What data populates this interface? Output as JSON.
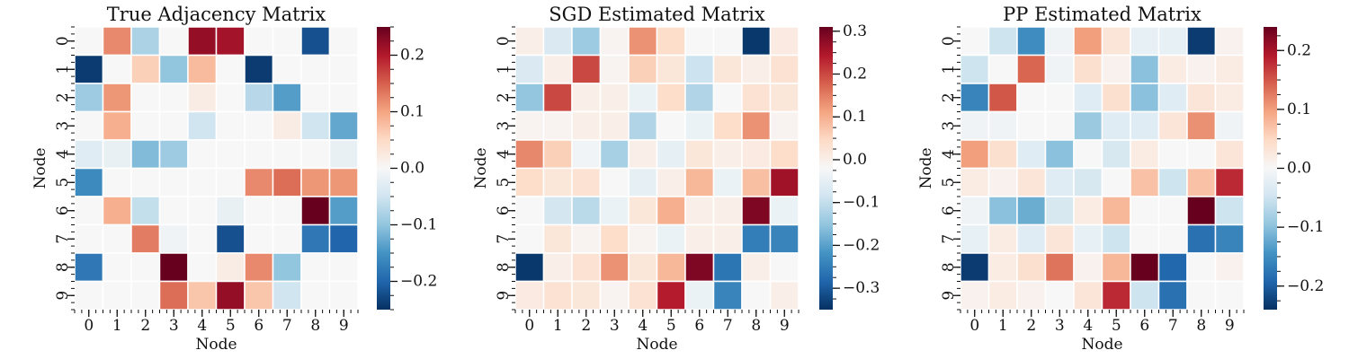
{
  "colors": {
    "colormap": "RdBu_r",
    "stops": [
      "#053061",
      "#2166ac",
      "#4393c3",
      "#92c5de",
      "#d1e5f0",
      "#f7f7f7",
      "#fddbc7",
      "#f4a582",
      "#d6604d",
      "#b2182b",
      "#67001f"
    ],
    "cell_border": "#ffffff"
  },
  "chart_data": [
    {
      "type": "heatmap",
      "title": "True Adjacency Matrix",
      "xlabel": "Node",
      "ylabel": "Node",
      "x_ticks": [
        "0",
        "1",
        "2",
        "3",
        "4",
        "5",
        "6",
        "7",
        "8",
        "9"
      ],
      "y_ticks": [
        "0",
        "1",
        "2",
        "3",
        "4",
        "5",
        "6",
        "7",
        "8",
        "9"
      ],
      "vmin": -0.25,
      "vmax": 0.25,
      "colorbar_ticks": [
        0.2,
        0.1,
        0.0,
        -0.1,
        -0.2
      ],
      "colorbar_labels": [
        "0.2",
        "0.1",
        "0.0",
        "−0.1",
        "−0.2"
      ],
      "values": [
        [
          0.0,
          0.12,
          -0.08,
          0.0,
          0.22,
          0.21,
          0.0,
          0.0,
          -0.22,
          0.0
        ],
        [
          -0.24,
          0.0,
          0.06,
          -0.1,
          0.08,
          0.0,
          -0.24,
          0.0,
          0.0,
          0.0
        ],
        [
          -0.09,
          0.11,
          0.0,
          0.0,
          0.02,
          0.0,
          -0.07,
          -0.14,
          0.0,
          0.0
        ],
        [
          0.0,
          0.09,
          0.0,
          0.0,
          -0.05,
          0.0,
          0.0,
          0.02,
          -0.05,
          -0.13
        ],
        [
          -0.03,
          -0.02,
          -0.11,
          -0.09,
          0.0,
          0.0,
          0.0,
          0.0,
          0.0,
          -0.02
        ],
        [
          -0.16,
          0.0,
          0.0,
          0.0,
          0.0,
          0.0,
          0.12,
          0.14,
          0.11,
          0.11
        ],
        [
          0.0,
          0.09,
          -0.06,
          0.0,
          0.0,
          -0.02,
          0.0,
          0.0,
          0.25,
          -0.14
        ],
        [
          0.0,
          0.0,
          0.13,
          -0.01,
          0.0,
          -0.22,
          0.0,
          0.0,
          -0.18,
          -0.2
        ],
        [
          -0.18,
          0.0,
          0.0,
          0.25,
          0.0,
          0.02,
          0.12,
          -0.1,
          0.0,
          0.0
        ],
        [
          0.0,
          0.0,
          0.0,
          0.14,
          0.07,
          0.22,
          0.07,
          -0.05,
          0.0,
          0.0
        ]
      ]
    },
    {
      "type": "heatmap",
      "title": "SGD Estimated Matrix",
      "xlabel": "Node",
      "ylabel": "Node",
      "x_ticks": [
        "0",
        "1",
        "2",
        "3",
        "4",
        "5",
        "6",
        "7",
        "8",
        "9"
      ],
      "y_ticks": [
        "0",
        "1",
        "2",
        "3",
        "4",
        "5",
        "6",
        "7",
        "8",
        "9"
      ],
      "vmin": -0.35,
      "vmax": 0.31,
      "colorbar_ticks": [
        0.3,
        0.2,
        0.1,
        0.0,
        -0.1,
        -0.2,
        -0.3
      ],
      "colorbar_labels": [
        "0.3",
        "0.2",
        "0.1",
        "0.0",
        "−0.1",
        "−0.2",
        "−0.3"
      ],
      "values": [
        [
          0.0,
          -0.07,
          -0.14,
          -0.01,
          0.13,
          0.04,
          -0.02,
          -0.02,
          -0.34,
          0.01
        ],
        [
          -0.07,
          0.0,
          0.2,
          -0.01,
          0.06,
          0.02,
          -0.09,
          0.02,
          0.0,
          0.03
        ],
        [
          -0.15,
          0.2,
          0.0,
          0.0,
          -0.04,
          0.04,
          -0.12,
          -0.02,
          0.03,
          0.02
        ],
        [
          -0.01,
          -0.01,
          0.0,
          0.0,
          -0.12,
          -0.02,
          -0.04,
          0.04,
          0.13,
          -0.01
        ],
        [
          0.14,
          0.06,
          -0.03,
          -0.13,
          0.0,
          -0.05,
          0.02,
          0.0,
          0.01,
          0.04
        ],
        [
          0.04,
          0.02,
          0.03,
          -0.02,
          -0.05,
          0.0,
          0.09,
          -0.04,
          0.08,
          0.26
        ],
        [
          -0.02,
          -0.08,
          -0.11,
          -0.04,
          0.02,
          0.1,
          0.0,
          0.0,
          0.29,
          -0.04
        ],
        [
          -0.02,
          0.02,
          -0.01,
          0.04,
          -0.01,
          -0.04,
          0.0,
          0.0,
          -0.25,
          -0.24
        ],
        [
          -0.34,
          0.0,
          0.03,
          0.13,
          0.02,
          0.09,
          0.29,
          -0.26,
          0.0,
          -0.02
        ],
        [
          0.01,
          0.03,
          0.02,
          -0.01,
          0.03,
          0.24,
          -0.04,
          -0.24,
          -0.02,
          0.0
        ]
      ]
    },
    {
      "type": "heatmap",
      "title": "PP Estimated Matrix",
      "xlabel": "Node",
      "ylabel": "Node",
      "x_ticks": [
        "0",
        "1",
        "2",
        "3",
        "4",
        "5",
        "6",
        "7",
        "8",
        "9"
      ],
      "y_ticks": [
        "0",
        "1",
        "2",
        "3",
        "4",
        "5",
        "6",
        "7",
        "8",
        "9"
      ],
      "vmin": -0.24,
      "vmax": 0.24,
      "colorbar_ticks": [
        0.2,
        0.1,
        0.0,
        -0.1,
        -0.2
      ],
      "colorbar_labels": [
        "0.2",
        "0.1",
        "0.0",
        "−0.1",
        "−0.2"
      ],
      "values": [
        [
          0.0,
          -0.05,
          -0.15,
          -0.01,
          0.1,
          0.03,
          -0.02,
          -0.02,
          -0.23,
          0.01
        ],
        [
          -0.05,
          0.0,
          0.14,
          -0.01,
          0.04,
          0.01,
          -0.1,
          0.02,
          0.01,
          0.02
        ],
        [
          -0.16,
          0.15,
          0.0,
          0.0,
          -0.03,
          0.04,
          -0.1,
          -0.03,
          0.03,
          0.02
        ],
        [
          -0.01,
          -0.01,
          0.0,
          0.0,
          -0.09,
          -0.03,
          -0.03,
          0.03,
          0.11,
          -0.01
        ],
        [
          0.1,
          0.04,
          -0.03,
          -0.1,
          0.0,
          -0.04,
          0.02,
          0.0,
          0.0,
          0.03
        ],
        [
          0.02,
          0.01,
          0.03,
          -0.03,
          -0.04,
          0.0,
          0.07,
          -0.05,
          0.07,
          0.18
        ],
        [
          -0.01,
          -0.1,
          -0.12,
          -0.04,
          0.02,
          0.08,
          0.0,
          0.0,
          0.24,
          -0.05
        ],
        [
          -0.02,
          0.02,
          -0.03,
          0.03,
          -0.02,
          -0.05,
          0.0,
          0.0,
          -0.18,
          -0.16
        ],
        [
          -0.23,
          0.02,
          0.04,
          0.13,
          0.01,
          0.08,
          0.24,
          -0.19,
          0.0,
          0.01
        ],
        [
          0.01,
          0.02,
          0.01,
          0.0,
          0.03,
          0.18,
          -0.05,
          -0.18,
          0.0,
          0.0
        ]
      ]
    }
  ]
}
